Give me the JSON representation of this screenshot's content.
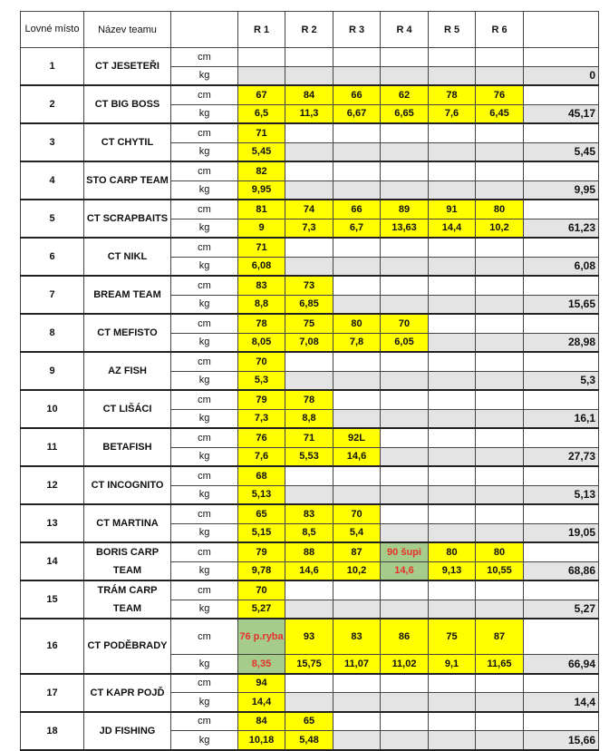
{
  "header": {
    "place": "Lovné místo",
    "team": "Název teamu",
    "unit": "",
    "rounds": [
      "R 1",
      "R 2",
      "R 3",
      "R 4",
      "R 5",
      "R 6"
    ],
    "total": ""
  },
  "units": {
    "cm": "cm",
    "kg": "kg"
  },
  "colors": {
    "filled": "#ffff00",
    "empty_kg": "#e4e4e4",
    "special": "#a6cc8c",
    "special_text": "#e8302a"
  },
  "teams": [
    {
      "place": "1",
      "name": "CT JESETEŘI",
      "cm": [
        "",
        "",
        "",
        "",
        "",
        ""
      ],
      "kg": [
        "",
        "",
        "",
        "",
        "",
        ""
      ],
      "total": "0"
    },
    {
      "place": "2",
      "name": "CT BIG BOSS",
      "cm": [
        "67",
        "84",
        "66",
        "62",
        "78",
        "76"
      ],
      "kg": [
        "6,5",
        "11,3",
        "6,67",
        "6,65",
        "7,6",
        "6,45"
      ],
      "total": "45,17"
    },
    {
      "place": "3",
      "name": "CT CHYTIL",
      "cm": [
        "71",
        "",
        "",
        "",
        "",
        ""
      ],
      "kg": [
        "5,45",
        "",
        "",
        "",
        "",
        ""
      ],
      "total": "5,45"
    },
    {
      "place": "4",
      "name": "STO CARP TEAM",
      "cm": [
        "82",
        "",
        "",
        "",
        "",
        ""
      ],
      "kg": [
        "9,95",
        "",
        "",
        "",
        "",
        ""
      ],
      "total": "9,95"
    },
    {
      "place": "5",
      "name": "CT SCRAPBAITS",
      "cm": [
        "81",
        "74",
        "66",
        "89",
        "91",
        "80"
      ],
      "kg": [
        "9",
        "7,3",
        "6,7",
        "13,63",
        "14,4",
        "10,2"
      ],
      "total": "61,23"
    },
    {
      "place": "6",
      "name": "CT NIKL",
      "cm": [
        "71",
        "",
        "",
        "",
        "",
        ""
      ],
      "kg": [
        "6,08",
        "",
        "",
        "",
        "",
        ""
      ],
      "total": "6,08"
    },
    {
      "place": "7",
      "name": "BREAM TEAM",
      "cm": [
        "83",
        "73",
        "",
        "",
        "",
        ""
      ],
      "kg": [
        "8,8",
        "6,85",
        "",
        "",
        "",
        ""
      ],
      "total": "15,65"
    },
    {
      "place": "8",
      "name": "CT MEFISTO",
      "cm": [
        "78",
        "75",
        "80",
        "70",
        "",
        ""
      ],
      "kg": [
        "8,05",
        "7,08",
        "7,8",
        "6,05",
        "",
        ""
      ],
      "total": "28,98"
    },
    {
      "place": "9",
      "name": "AZ FISH",
      "cm": [
        "70",
        "",
        "",
        "",
        "",
        ""
      ],
      "kg": [
        "5,3",
        "",
        "",
        "",
        "",
        ""
      ],
      "total": "5,3"
    },
    {
      "place": "10",
      "name": "CT LIŠÁCI",
      "cm": [
        "79",
        "78",
        "",
        "",
        "",
        ""
      ],
      "kg": [
        "7,3",
        "8,8",
        "",
        "",
        "",
        ""
      ],
      "total": "16,1"
    },
    {
      "place": "11",
      "name": "BETAFISH",
      "cm": [
        "76",
        "71",
        "92L",
        "",
        "",
        ""
      ],
      "kg": [
        "7,6",
        "5,53",
        "14,6",
        "",
        "",
        ""
      ],
      "total": "27,73"
    },
    {
      "place": "12",
      "name": "CT INCOGNITO",
      "cm": [
        "68",
        "",
        "",
        "",
        "",
        ""
      ],
      "kg": [
        "5,13",
        "",
        "",
        "",
        "",
        ""
      ],
      "total": "5,13"
    },
    {
      "place": "13",
      "name": "CT MARTINA",
      "cm": [
        "65",
        "83",
        "70",
        "",
        "",
        ""
      ],
      "kg": [
        "5,15",
        "8,5",
        "5,4",
        "",
        "",
        ""
      ],
      "total": "19,05"
    },
    {
      "place": "14",
      "name": "BORIS CARP TEAM",
      "cm": [
        "79",
        "88",
        "87",
        "90 šupi",
        "80",
        "80"
      ],
      "kg": [
        "9,78",
        "14,6",
        "10,2",
        "14,6",
        "9,13",
        "10,55"
      ],
      "total": "68,86",
      "special_rounds": [
        3
      ]
    },
    {
      "place": "15",
      "name": "TRÁM CARP TEAM",
      "cm": [
        "70",
        "",
        "",
        "",
        "",
        ""
      ],
      "kg": [
        "5,27",
        "",
        "",
        "",
        "",
        ""
      ],
      "total": "5,27"
    },
    {
      "place": "16",
      "name": "CT PODĚBRADY",
      "cm": [
        "76 p.ryba",
        "93",
        "83",
        "86",
        "75",
        "87"
      ],
      "kg": [
        "8,35",
        "15,75",
        "11,07",
        "11,02",
        "9,1",
        "11,65"
      ],
      "total": "66,94",
      "special_rounds": [
        0
      ],
      "tall": true
    },
    {
      "place": "17",
      "name": "CT KAPR POJĎ",
      "cm": [
        "94",
        "",
        "",
        "",
        "",
        ""
      ],
      "kg": [
        "14,4",
        "",
        "",
        "",
        "",
        ""
      ],
      "total": "14,4"
    },
    {
      "place": "18",
      "name": "JD FISHING",
      "cm": [
        "84",
        "65",
        "",
        "",
        "",
        ""
      ],
      "kg": [
        "10,18",
        "5,48",
        "",
        "",
        "",
        ""
      ],
      "total": "15,66"
    }
  ]
}
